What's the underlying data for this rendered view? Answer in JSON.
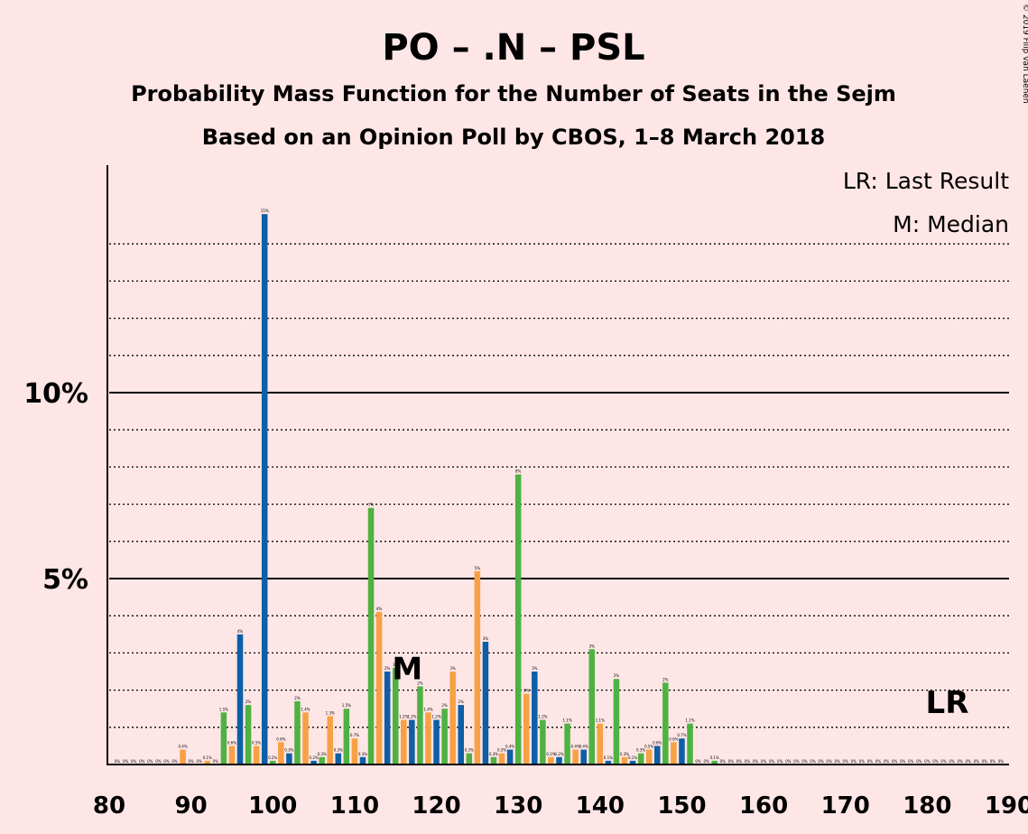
{
  "title": "PO – .N – PSL",
  "subtitle1": "Probability Mass Function for the Number of Seats in the Sejm",
  "subtitle2": "Based on an Opinion Poll by CBOS, 1–8 March 2018",
  "copyright": "© 2019 Filip van Laenen",
  "legend": {
    "last_result": "LR: Last Result",
    "median": "M: Median"
  },
  "markers": {
    "median": {
      "label": "M",
      "x": 116
    },
    "last_result": {
      "label": "LR",
      "x": 182
    }
  },
  "colors": {
    "background": "#FFE6E6",
    "blue": "#0D5FA6",
    "green": "#4EB242",
    "orange": "#F7A144"
  },
  "chart_data": {
    "type": "bar",
    "xlim": [
      80,
      190
    ],
    "ylim": [
      0,
      16
    ],
    "x_ticks": [
      "80",
      "90",
      "100",
      "110",
      "120",
      "130",
      "140",
      "150",
      "160",
      "170",
      "180",
      "190"
    ],
    "y_ticks": [
      {
        "value": 5,
        "label": "5%"
      },
      {
        "value": 10,
        "label": "10%"
      }
    ],
    "bars": [
      {
        "x": 81,
        "y": 0,
        "label": "0%"
      },
      {
        "x": 82,
        "y": 0,
        "label": "0%"
      },
      {
        "x": 83,
        "y": 0,
        "label": "0%"
      },
      {
        "x": 84,
        "y": 0,
        "label": "0%"
      },
      {
        "x": 85,
        "y": 0,
        "label": "0%"
      },
      {
        "x": 86,
        "y": 0,
        "label": "0%"
      },
      {
        "x": 87,
        "y": 0,
        "label": "0%"
      },
      {
        "x": 88,
        "y": 0,
        "label": "0%"
      },
      {
        "x": 89,
        "y": 0.4,
        "label": "0.4%"
      },
      {
        "x": 90,
        "y": 0,
        "label": "0%"
      },
      {
        "x": 91,
        "y": 0,
        "label": "0%"
      },
      {
        "x": 92,
        "y": 0.1,
        "label": "0.1%"
      },
      {
        "x": 93,
        "y": 0,
        "label": "0%"
      },
      {
        "x": 94,
        "y": 1.4,
        "label": "1.5%"
      },
      {
        "x": 95,
        "y": 0.5,
        "label": "0.6%"
      },
      {
        "x": 96,
        "y": 3.5,
        "label": "4%"
      },
      {
        "x": 97,
        "y": 1.6,
        "label": "2%"
      },
      {
        "x": 98,
        "y": 0.5,
        "label": "0.5%"
      },
      {
        "x": 99,
        "y": 14.8,
        "label": "15%"
      },
      {
        "x": 100,
        "y": 0.1,
        "label": "0.2%"
      },
      {
        "x": 101,
        "y": 0.6,
        "label": "0.6%"
      },
      {
        "x": 102,
        "y": 0.3,
        "label": "0.3%"
      },
      {
        "x": 103,
        "y": 1.7,
        "label": "2%"
      },
      {
        "x": 104,
        "y": 1.4,
        "label": "1.4%"
      },
      {
        "x": 105,
        "y": 0.1,
        "label": "0.2%"
      },
      {
        "x": 106,
        "y": 0.2,
        "label": "0.3%"
      },
      {
        "x": 107,
        "y": 1.3,
        "label": "1.3%"
      },
      {
        "x": 108,
        "y": 0.3,
        "label": "0.3%"
      },
      {
        "x": 109,
        "y": 1.5,
        "label": "1.5%"
      },
      {
        "x": 110,
        "y": 0.7,
        "label": "0.7%"
      },
      {
        "x": 111,
        "y": 0.2,
        "label": "0.3%"
      },
      {
        "x": 112,
        "y": 6.9,
        "label": "7%"
      },
      {
        "x": 113,
        "y": 4.1,
        "label": "4%"
      },
      {
        "x": 114,
        "y": 2.5,
        "label": "2%"
      },
      {
        "x": 115,
        "y": 2.6,
        "label": "3%"
      },
      {
        "x": 116,
        "y": 1.2,
        "label": "1.2%"
      },
      {
        "x": 117,
        "y": 1.2,
        "label": "1.2%"
      },
      {
        "x": 118,
        "y": 2.1,
        "label": "2%"
      },
      {
        "x": 119,
        "y": 1.4,
        "label": "1.4%"
      },
      {
        "x": 120,
        "y": 1.2,
        "label": "1.2%"
      },
      {
        "x": 121,
        "y": 1.5,
        "label": "2%"
      },
      {
        "x": 122,
        "y": 2.5,
        "label": "3%"
      },
      {
        "x": 123,
        "y": 1.6,
        "label": "2%"
      },
      {
        "x": 124,
        "y": 0.3,
        "label": "0.3%"
      },
      {
        "x": 125,
        "y": 5.2,
        "label": "5%"
      },
      {
        "x": 126,
        "y": 3.3,
        "label": "3%"
      },
      {
        "x": 127,
        "y": 0.2,
        "label": "0.3%"
      },
      {
        "x": 128,
        "y": 0.3,
        "label": "0.3%"
      },
      {
        "x": 129,
        "y": 0.4,
        "label": "0.4%"
      },
      {
        "x": 130,
        "y": 7.8,
        "label": "8%"
      },
      {
        "x": 131,
        "y": 1.9,
        "label": "2%"
      },
      {
        "x": 132,
        "y": 2.5,
        "label": "3%"
      },
      {
        "x": 133,
        "y": 1.2,
        "label": "1.2%"
      },
      {
        "x": 134,
        "y": 0.2,
        "label": "0.3%"
      },
      {
        "x": 135,
        "y": 0.2,
        "label": "0.2%"
      },
      {
        "x": 136,
        "y": 1.1,
        "label": "1.1%"
      },
      {
        "x": 137,
        "y": 0.4,
        "label": "0.4%"
      },
      {
        "x": 138,
        "y": 0.4,
        "label": "0.4%"
      },
      {
        "x": 139,
        "y": 3.1,
        "label": "3%"
      },
      {
        "x": 140,
        "y": 1.1,
        "label": "1.1%"
      },
      {
        "x": 141,
        "y": 0.1,
        "label": "0.1%"
      },
      {
        "x": 142,
        "y": 2.3,
        "label": "2%"
      },
      {
        "x": 143,
        "y": 0.2,
        "label": "0.3%"
      },
      {
        "x": 144,
        "y": 0.1,
        "label": "0.1%"
      },
      {
        "x": 145,
        "y": 0.3,
        "label": "0.3%"
      },
      {
        "x": 146,
        "y": 0.4,
        "label": "0.5%"
      },
      {
        "x": 147,
        "y": 0.5,
        "label": "0.6%"
      },
      {
        "x": 148,
        "y": 2.2,
        "label": "2%"
      },
      {
        "x": 149,
        "y": 0.6,
        "label": "0.6%"
      },
      {
        "x": 150,
        "y": 0.7,
        "label": "0.7%"
      },
      {
        "x": 151,
        "y": 1.1,
        "label": "1.1%"
      },
      {
        "x": 152,
        "y": 0,
        "label": "0%"
      },
      {
        "x": 153,
        "y": 0,
        "label": "0%"
      },
      {
        "x": 154,
        "y": 0.1,
        "label": "0.1%"
      },
      {
        "x": 155,
        "y": 0,
        "label": "0%"
      },
      {
        "x": 156,
        "y": 0,
        "label": "0%"
      },
      {
        "x": 157,
        "y": 0,
        "label": "0%"
      },
      {
        "x": 158,
        "y": 0,
        "label": "0%"
      },
      {
        "x": 159,
        "y": 0,
        "label": "0%"
      },
      {
        "x": 160,
        "y": 0,
        "label": "0%"
      },
      {
        "x": 161,
        "y": 0,
        "label": "0%"
      },
      {
        "x": 162,
        "y": 0,
        "label": "0%"
      },
      {
        "x": 163,
        "y": 0,
        "label": "0%"
      },
      {
        "x": 164,
        "y": 0,
        "label": "0%"
      },
      {
        "x": 165,
        "y": 0,
        "label": "0%"
      },
      {
        "x": 166,
        "y": 0,
        "label": "0%"
      },
      {
        "x": 167,
        "y": 0,
        "label": "0%"
      },
      {
        "x": 168,
        "y": 0,
        "label": "0%"
      },
      {
        "x": 169,
        "y": 0,
        "label": "0%"
      },
      {
        "x": 170,
        "y": 0,
        "label": "0%"
      },
      {
        "x": 171,
        "y": 0,
        "label": "0%"
      },
      {
        "x": 172,
        "y": 0,
        "label": "0%"
      },
      {
        "x": 173,
        "y": 0,
        "label": "0%"
      },
      {
        "x": 174,
        "y": 0,
        "label": "0%"
      },
      {
        "x": 175,
        "y": 0,
        "label": "0%"
      },
      {
        "x": 176,
        "y": 0,
        "label": "0%"
      },
      {
        "x": 177,
        "y": 0,
        "label": "0%"
      },
      {
        "x": 178,
        "y": 0,
        "label": "0%"
      },
      {
        "x": 179,
        "y": 0,
        "label": "0%"
      },
      {
        "x": 180,
        "y": 0,
        "label": "0%"
      },
      {
        "x": 181,
        "y": 0,
        "label": "0%"
      },
      {
        "x": 182,
        "y": 0,
        "label": "0%"
      },
      {
        "x": 183,
        "y": 0,
        "label": "0%"
      },
      {
        "x": 184,
        "y": 0,
        "label": "0%"
      },
      {
        "x": 185,
        "y": 0,
        "label": "0%"
      },
      {
        "x": 186,
        "y": 0,
        "label": "0%"
      },
      {
        "x": 187,
        "y": 0,
        "label": "0%"
      },
      {
        "x": 188,
        "y": 0,
        "label": "0%"
      },
      {
        "x": 189,
        "y": 0,
        "label": "0%"
      }
    ]
  }
}
